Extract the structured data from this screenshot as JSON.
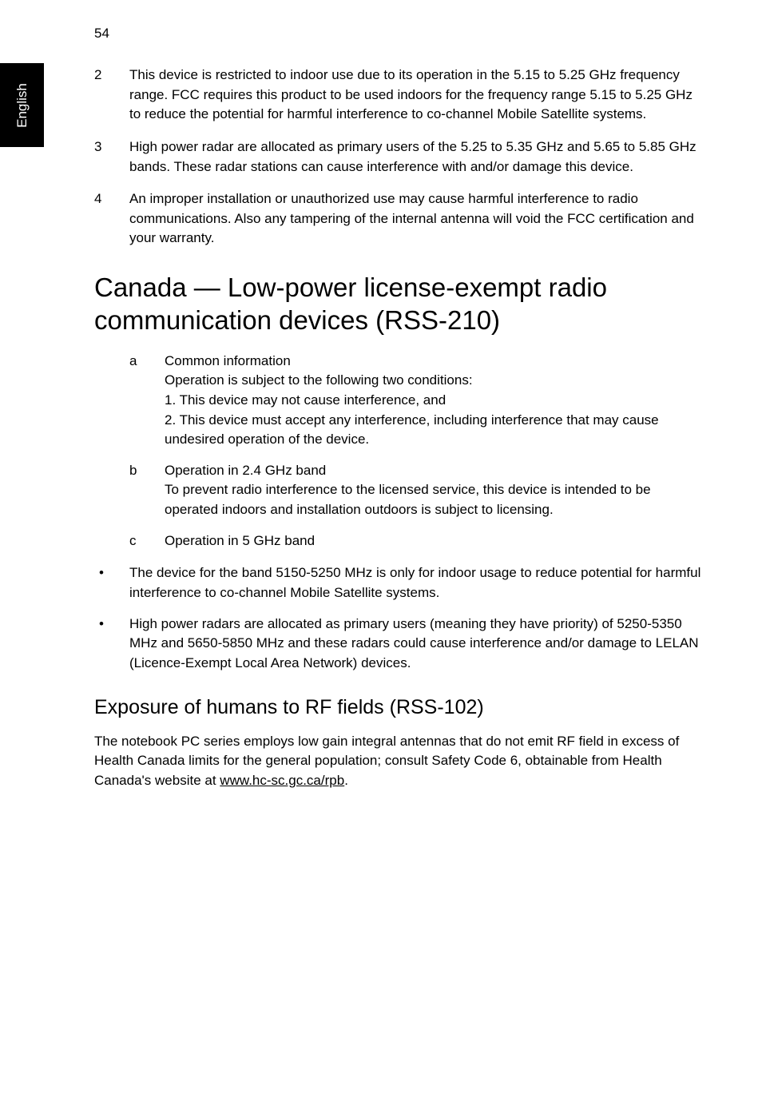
{
  "page_number": "54",
  "side_tab": "English",
  "numbered_items": [
    {
      "num": "2",
      "text": "This device is restricted to indoor use due to its operation in the 5.15 to 5.25 GHz frequency range. FCC requires this product to be used indoors for the frequency range 5.15 to 5.25 GHz to reduce the potential for harmful interference to co-channel Mobile Satellite systems."
    },
    {
      "num": "3",
      "text": "High power radar are allocated as primary users of the 5.25 to 5.35 GHz and 5.65 to 5.85 GHz bands. These radar stations can cause interference with and/or damage this device."
    },
    {
      "num": "4",
      "text": "An improper installation or unauthorized use may cause harmful interference to radio communications. Also any tampering of the internal antenna will void the FCC certification and your warranty."
    }
  ],
  "heading1": "Canada — Low-power license-exempt radio communication devices (RSS-210)",
  "letter_items": [
    {
      "letter": "a",
      "lines": [
        "Common information",
        "Operation is subject to the following two conditions:",
        "1. This device may not cause interference, and",
        "2. This device must accept any interference, including interference that may cause undesired operation of the device."
      ]
    },
    {
      "letter": "b",
      "lines": [
        "Operation in 2.4 GHz band",
        "To prevent radio interference to the licensed service, this device is intended to be operated indoors and installation outdoors is subject to licensing."
      ]
    },
    {
      "letter": "c",
      "lines": [
        "Operation in 5 GHz band"
      ]
    }
  ],
  "bullet_items": [
    "The device for the band 5150-5250 MHz is only for indoor usage to reduce potential for harmful interference to co-channel Mobile Satellite systems.",
    "High power radars are allocated as primary users (meaning they have priority) of 5250-5350 MHz and 5650-5850 MHz and these radars could cause interference and/or damage to LELAN (Licence-Exempt Local Area Network) devices."
  ],
  "heading2": "Exposure of humans to RF fields (RSS-102)",
  "para_prefix": "The notebook PC series employs low gain integral antennas that do not emit RF field in excess of Health Canada limits for the general population; consult Safety Code 6, obtainable from Health Canada's website at ",
  "para_link": "www.hc-sc.gc.ca/rpb",
  "para_suffix": "."
}
